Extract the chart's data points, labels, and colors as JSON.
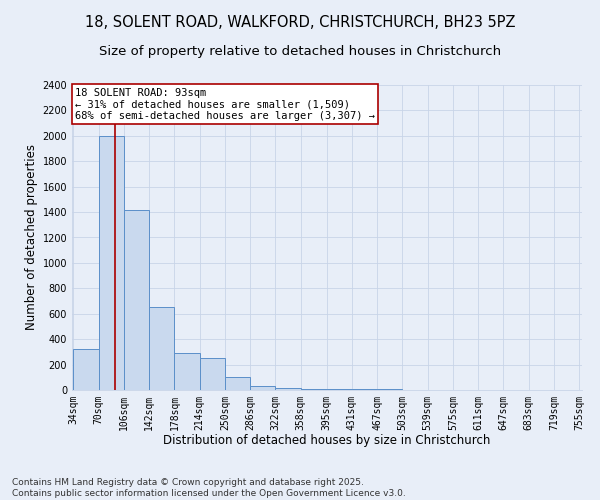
{
  "title_line1": "18, SOLENT ROAD, WALKFORD, CHRISTCHURCH, BH23 5PZ",
  "title_line2": "Size of property relative to detached houses in Christchurch",
  "xlabel": "Distribution of detached houses by size in Christchurch",
  "ylabel": "Number of detached properties",
  "bar_edges": [
    34,
    70,
    106,
    142,
    178,
    214,
    250,
    286,
    322,
    358,
    395,
    431,
    467,
    503,
    539,
    575,
    611,
    647,
    683,
    719,
    755
  ],
  "bar_heights": [
    320,
    2000,
    1420,
    650,
    290,
    250,
    100,
    30,
    15,
    10,
    8,
    5,
    4,
    3,
    2,
    2,
    1,
    1,
    1,
    1
  ],
  "bar_color": "#c9d9ee",
  "bar_edge_color": "#5b8fc9",
  "property_size": 93,
  "property_line_color": "#aa0000",
  "annotation_text": "18 SOLENT ROAD: 93sqm\n← 31% of detached houses are smaller (1,509)\n68% of semi-detached houses are larger (3,307) →",
  "annotation_box_color": "#aa0000",
  "annotation_text_color": "#000000",
  "ylim": [
    0,
    2400
  ],
  "yticks": [
    0,
    200,
    400,
    600,
    800,
    1000,
    1200,
    1400,
    1600,
    1800,
    2000,
    2200,
    2400
  ],
  "tick_labels": [
    "34sqm",
    "70sqm",
    "106sqm",
    "142sqm",
    "178sqm",
    "214sqm",
    "250sqm",
    "286sqm",
    "322sqm",
    "358sqm",
    "395sqm",
    "431sqm",
    "467sqm",
    "503sqm",
    "539sqm",
    "575sqm",
    "611sqm",
    "647sqm",
    "683sqm",
    "719sqm",
    "755sqm"
  ],
  "background_color": "#e8eef8",
  "plot_bg_color": "#e8eef8",
  "footer_text": "Contains HM Land Registry data © Crown copyright and database right 2025.\nContains public sector information licensed under the Open Government Licence v3.0.",
  "title_fontsize": 10.5,
  "subtitle_fontsize": 9.5,
  "label_fontsize": 8.5,
  "tick_fontsize": 7,
  "footer_fontsize": 6.5,
  "annot_fontsize": 7.5
}
